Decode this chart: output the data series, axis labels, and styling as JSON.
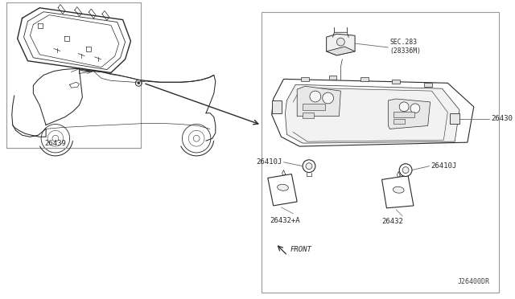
{
  "bg_color": "#ffffff",
  "line_color": "#2a2a2a",
  "label_color": "#2a2a2a",
  "border_color": "#999999",
  "diagram_ref": "J26400DR",
  "parts": {
    "26439": "26439",
    "26430": "26430",
    "26410J_L": "26410J",
    "26410J_R": "26410J",
    "26432A": "26432+A",
    "26432": "26432",
    "SEC283": "SEC.283\n(28336M)",
    "FRONT": "FRONT"
  },
  "figsize": [
    6.4,
    3.72
  ],
  "dpi": 100
}
